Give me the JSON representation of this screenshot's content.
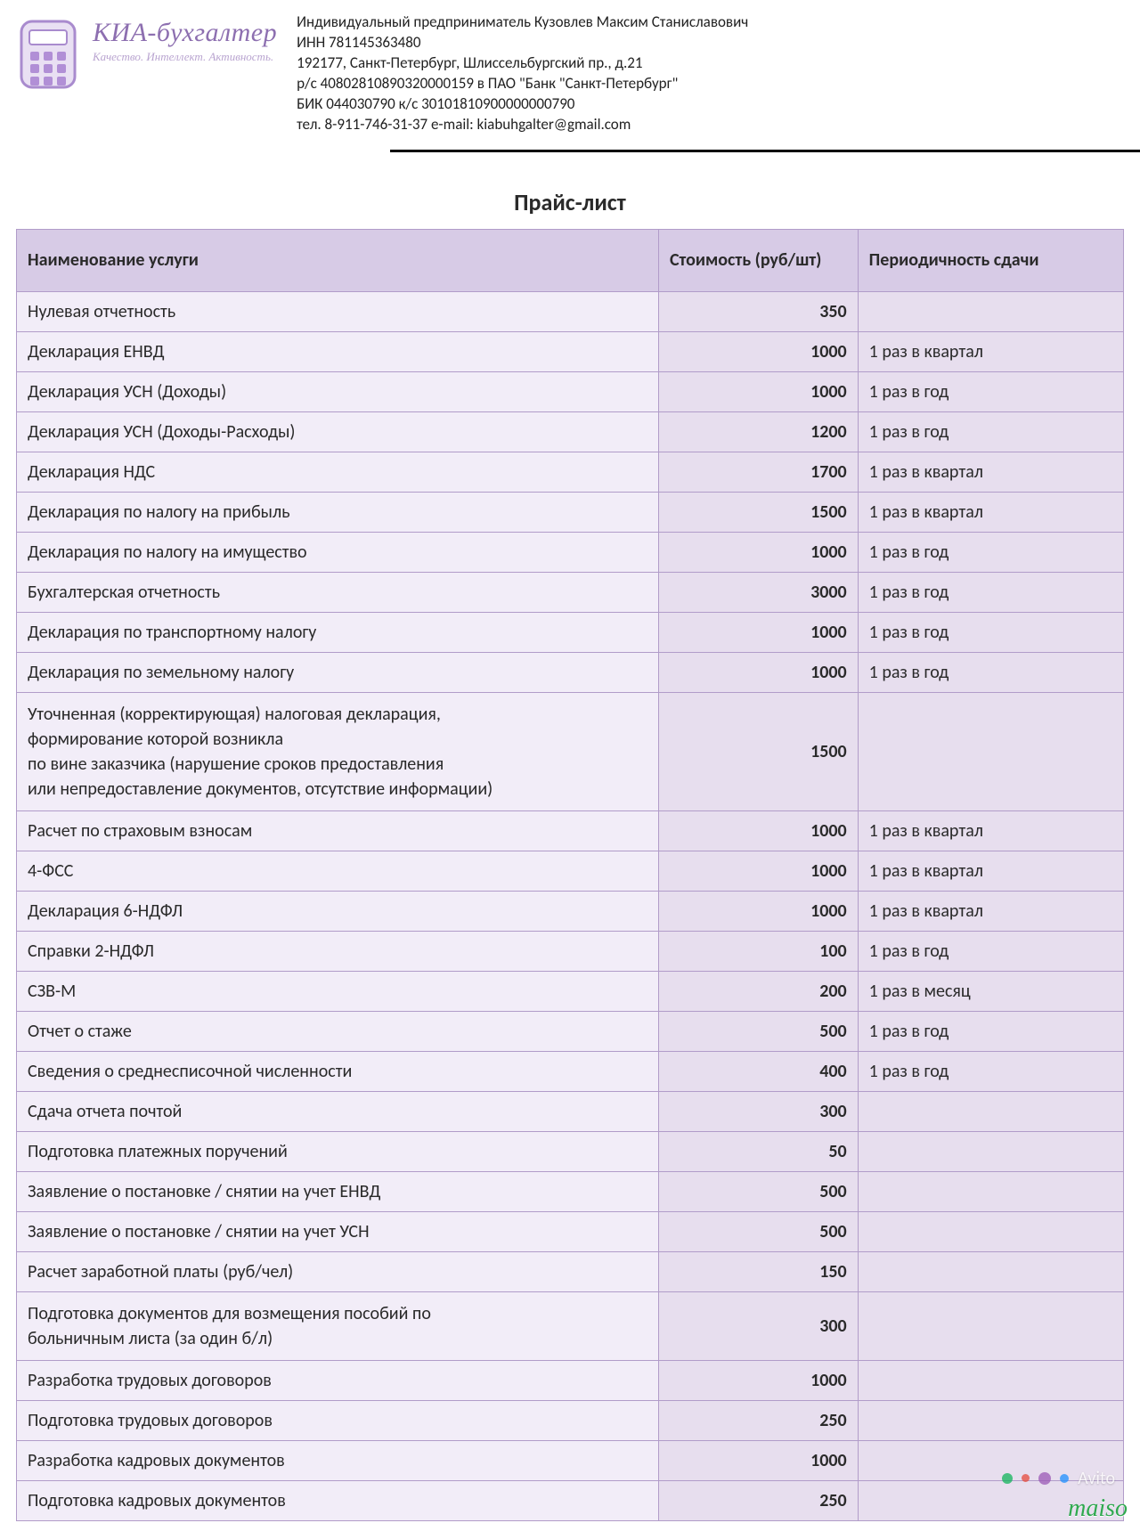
{
  "colors": {
    "border": "#b19cc9",
    "header_bg": "#d7cbe6",
    "row_name_bg": "#f2edf8",
    "row_price_bg": "#e7deee",
    "row_period_bg": "#e7deee",
    "logo_outline": "#a98bce",
    "logo_fill": "#e9e0f3",
    "logo_accent": "#b18fd6",
    "avito_dots": [
      "#12b45a",
      "#e64b3c",
      "#9b59b6",
      "#1e90ff"
    ]
  },
  "logo": {
    "title": "КИА-бухгалтер",
    "tagline": "Качество. Интеллект. Активность."
  },
  "org": {
    "lines": "Индивидуальный предприниматель Кузовлев Максим Станиславович\nИНН 781145363480\n192177, Санкт-Петербург, Шлиссельбургский пр., д.21\nр/с 40802810890320000159 в ПАО \"Банк \"Санкт-Петербург\"\nБИК 044030790 к/с 30101810900000000790\nтел. 8-911-746-31-37 e-mail: kiabuhgalter@gmail.com"
  },
  "title": "Прайс-лист",
  "table": {
    "columns": {
      "name": "Наименование услуги",
      "price": "Стоимость (руб/шт)",
      "period": "Периодичность сдачи"
    },
    "rows": [
      {
        "name": "Нулевая отчетность",
        "price": "350",
        "period": ""
      },
      {
        "name": "Декларация ЕНВД",
        "price": "1000",
        "period": "1 раз в квартал"
      },
      {
        "name": "Декларация УСН (Доходы)",
        "price": "1000",
        "period": "1 раз в год"
      },
      {
        "name": "Декларация УСН (Доходы-Расходы)",
        "price": "1200",
        "period": "1 раз в год"
      },
      {
        "name": "Декларация НДС",
        "price": "1700",
        "period": "1 раз в квартал"
      },
      {
        "name": "Декларация по налогу на прибыль",
        "price": "1500",
        "period": "1 раз в квартал"
      },
      {
        "name": "Декларация по налогу на имущество",
        "price": "1000",
        "period": "1 раз в год"
      },
      {
        "name": "Бухгалтерская отчетность",
        "price": "3000",
        "period": "1 раз в год"
      },
      {
        "name": "Декларация по транспортному налогу",
        "price": "1000",
        "period": "1 раз в год"
      },
      {
        "name": "Декларация по земельному налогу",
        "price": "1000",
        "period": "1 раз в год"
      },
      {
        "name": "Уточненная (корректирующая) налоговая декларация,\nформирование которой возникла\nпо вине заказчика (нарушение сроков предоставления\nили непредоставление документов, отсутствие информации)",
        "price": "1500",
        "period": "",
        "multiline": true
      },
      {
        "name": "Расчет по страховым взносам",
        "price": "1000",
        "period": "1 раз в квартал"
      },
      {
        "name": "4-ФСС",
        "price": "1000",
        "period": "1 раз в квартал"
      },
      {
        "name": "Декларация 6-НДФЛ",
        "price": "1000",
        "period": "1 раз в квартал"
      },
      {
        "name": "Справки 2-НДФЛ",
        "price": "100",
        "period": "1 раз в год"
      },
      {
        "name": "СЗВ-М",
        "price": "200",
        "period": "1 раз в месяц"
      },
      {
        "name": "Отчет о стаже",
        "price": "500",
        "period": "1 раз в год"
      },
      {
        "name": "Сведения о среднесписочной численности",
        "price": "400",
        "period": "1 раз в год"
      },
      {
        "name": "Сдача отчета почтой",
        "price": "300",
        "period": ""
      },
      {
        "name": "Подготовка платежных поручений",
        "price": "50",
        "period": ""
      },
      {
        "name": "Заявление о постановке / снятии на учет ЕНВД",
        "price": "500",
        "period": ""
      },
      {
        "name": "Заявление о постановке / снятии на учет УСН",
        "price": "500",
        "period": ""
      },
      {
        "name": "Расчет заработной платы (руб/чел)",
        "price": "150",
        "period": ""
      },
      {
        "name": "Подготовка документов для возмещения пособий по\nбольничным листа (за один б/л)",
        "price": "300",
        "period": "",
        "multiline": true
      },
      {
        "name": "Разработка трудовых договоров",
        "price": "1000",
        "period": ""
      },
      {
        "name": "Подготовка трудовых договоров",
        "price": "250",
        "period": ""
      },
      {
        "name": "Разработка кадровых документов",
        "price": "1000",
        "period": ""
      },
      {
        "name": "Подготовка кадровых документов",
        "price": "250",
        "period": ""
      }
    ]
  },
  "watermarks": {
    "avito": "Avito",
    "maiso": "maiso"
  }
}
